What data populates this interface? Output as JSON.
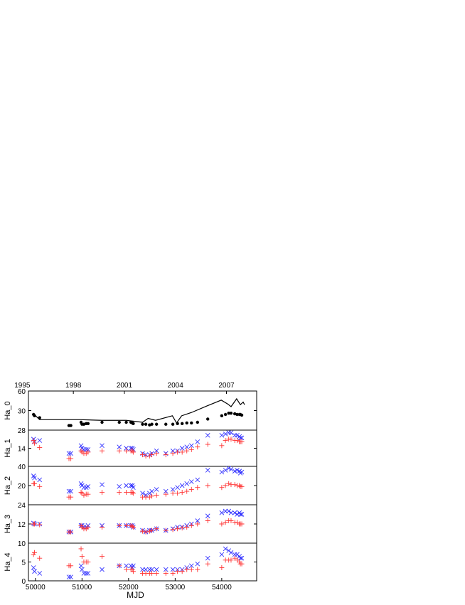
{
  "chart_data": [
    {
      "type": "scatter",
      "ylabel": "Ha_0",
      "ylim": [
        0,
        60
      ],
      "yticks": [
        30,
        60
      ],
      "xlim": [
        49850,
        54750
      ],
      "x2ticks": [
        {
          "value": 49718,
          "label": "1995"
        },
        {
          "value": 50814,
          "label": "1998"
        },
        {
          "value": 51910,
          "label": "2001"
        },
        {
          "value": 53005,
          "label": "2004"
        },
        {
          "value": 54101,
          "label": "2007"
        }
      ],
      "x": [
        49960,
        49980,
        50090,
        50720,
        50760,
        50980,
        51000,
        51040,
        51090,
        51130,
        51430,
        51800,
        51950,
        52050,
        52080,
        52100,
        52300,
        52370,
        52450,
        52500,
        52600,
        52800,
        52950,
        53050,
        53150,
        53250,
        53350,
        53480,
        53700,
        54000,
        54080,
        54150,
        54200,
        54280,
        54330,
        54380,
        54400,
        54430
      ],
      "series": [
        {
          "marker": "line",
          "color": "#000000",
          "x": [
            49960,
            50090,
            50720,
            50980,
            51430,
            51950,
            52300,
            52420,
            52580,
            52940,
            53030,
            53140,
            53350,
            53680,
            53990,
            54130,
            54200,
            54320,
            54400,
            54460,
            54490
          ],
          "values": [
            25,
            16,
            16,
            16,
            15,
            15,
            12,
            18,
            15,
            22,
            11,
            22,
            27,
            37,
            46,
            40,
            36,
            48,
            39,
            43,
            39
          ]
        },
        {
          "marker": "dot",
          "color": "#000000",
          "values": [
            24,
            22,
            19,
            7,
            7,
            12,
            9,
            9,
            10,
            10,
            12,
            12,
            12,
            12,
            11,
            10,
            9,
            9,
            8,
            9,
            9,
            9,
            9,
            10,
            10,
            11,
            11,
            12,
            17,
            22,
            24,
            26,
            26,
            25,
            24,
            24,
            24,
            23
          ]
        }
      ]
    },
    {
      "type": "scatter",
      "ylabel": "Ha_1",
      "ylim": [
        0,
        28
      ],
      "yticks": [
        14,
        28
      ],
      "xlim": [
        49850,
        54750
      ],
      "x": [
        49960,
        49980,
        50090,
        50720,
        50760,
        50980,
        51000,
        51040,
        51090,
        51130,
        51430,
        51800,
        51950,
        52050,
        52080,
        52100,
        52300,
        52370,
        52450,
        52500,
        52600,
        52800,
        52950,
        53050,
        53150,
        53250,
        53350,
        53480,
        53700,
        54000,
        54080,
        54150,
        54200,
        54280,
        54330,
        54380,
        54400,
        54430
      ],
      "series": [
        {
          "marker": "x",
          "color": "#3333ff",
          "values": [
            21,
            19,
            20,
            10,
            10,
            16,
            14,
            13,
            13,
            13,
            16,
            15,
            14,
            14,
            14,
            13,
            10,
            9,
            9,
            10,
            12,
            10,
            12,
            12,
            14,
            15,
            16,
            19,
            24,
            24,
            25,
            26,
            26,
            24,
            24,
            23,
            22,
            22
          ]
        },
        {
          "marker": "+",
          "color": "#ff3333",
          "values": [
            20,
            18,
            14.5,
            6,
            6,
            12,
            11,
            10,
            10,
            11,
            12,
            12,
            12,
            12,
            12,
            11,
            9,
            8,
            8,
            9,
            10,
            9,
            10,
            11,
            11,
            12,
            13,
            15,
            17,
            16,
            20,
            21,
            21,
            20,
            20,
            19,
            19,
            19
          ]
        }
      ]
    },
    {
      "type": "scatter",
      "ylabel": "Ha_2",
      "ylim": [
        0,
        40
      ],
      "yticks": [
        20,
        40
      ],
      "xlim": [
        49850,
        54750
      ],
      "x": [
        49960,
        49980,
        50090,
        50720,
        50760,
        50980,
        51000,
        51040,
        51090,
        51130,
        51430,
        51800,
        51950,
        52050,
        52080,
        52100,
        52300,
        52370,
        52450,
        52500,
        52600,
        52800,
        52950,
        53050,
        53150,
        53250,
        53350,
        53480,
        53700,
        54000,
        54080,
        54150,
        54200,
        54280,
        54330,
        54380,
        54400,
        54430
      ],
      "series": [
        {
          "marker": "x",
          "color": "#3333ff",
          "values": [
            30,
            28,
            26,
            14,
            14,
            22,
            20,
            18,
            18,
            19,
            21,
            19,
            20,
            20,
            20,
            18,
            12,
            10,
            12,
            14,
            16,
            14,
            16,
            18,
            20,
            22,
            24,
            26,
            36,
            34,
            36,
            38,
            37,
            35,
            36,
            35,
            33,
            34
          ]
        },
        {
          "marker": "+",
          "color": "#ff3333",
          "values": [
            22,
            22,
            19,
            8,
            8,
            13,
            12,
            10,
            11,
            11,
            13,
            13,
            13,
            13,
            13,
            12,
            8,
            8,
            8,
            9,
            10,
            11,
            12,
            12,
            13,
            14,
            16,
            18,
            20,
            18,
            20,
            22,
            21,
            21,
            20,
            20,
            19,
            19
          ]
        }
      ]
    },
    {
      "type": "scatter",
      "ylabel": "Ha_3",
      "ylim": [
        0,
        24
      ],
      "yticks": [
        12,
        24
      ],
      "xlim": [
        49850,
        54750
      ],
      "x": [
        49960,
        49980,
        50090,
        50720,
        50760,
        50980,
        51000,
        51040,
        51090,
        51130,
        51430,
        51800,
        51950,
        52050,
        52080,
        52100,
        52300,
        52370,
        52450,
        52500,
        52600,
        52800,
        52950,
        53050,
        53150,
        53250,
        53350,
        53480,
        53700,
        54000,
        54080,
        54150,
        54200,
        54280,
        54330,
        54380,
        54400,
        54430
      ],
      "series": [
        {
          "marker": "x",
          "color": "#3333ff",
          "values": [
            12.5,
            12,
            12,
            7,
            7,
            11,
            11,
            10,
            10,
            11,
            11,
            11,
            11,
            11,
            11,
            10,
            8,
            7,
            8,
            8,
            9,
            8,
            9,
            10,
            10,
            11,
            12,
            14,
            17,
            19,
            20,
            20,
            19,
            19,
            18,
            19,
            18,
            18
          ]
        },
        {
          "marker": "+",
          "color": "#ff3333",
          "values": [
            12,
            12,
            11.5,
            7,
            7,
            11,
            10,
            9,
            9,
            10,
            10,
            11,
            11,
            11,
            10.5,
            10,
            7.5,
            7,
            7.5,
            8,
            9,
            8,
            8.5,
            9,
            9.5,
            10,
            11,
            12,
            14,
            12,
            13,
            14,
            14,
            13,
            13,
            12,
            12,
            12
          ]
        }
      ]
    },
    {
      "type": "scatter",
      "ylabel": "Ha_4",
      "xlabel": "MJD",
      "ylim": [
        0,
        10
      ],
      "yticks": [
        0,
        5,
        10
      ],
      "xlim": [
        49850,
        54750
      ],
      "xticks": [
        50000,
        51000,
        52000,
        53000,
        54000
      ],
      "x": [
        49960,
        49980,
        50090,
        50720,
        50760,
        50980,
        51000,
        51040,
        51090,
        51130,
        51430,
        51800,
        51950,
        52050,
        52080,
        52100,
        52300,
        52370,
        52450,
        52500,
        52600,
        52800,
        52950,
        53050,
        53150,
        53250,
        53350,
        53480,
        53700,
        54000,
        54080,
        54150,
        54200,
        54280,
        54330,
        54380,
        54400,
        54430
      ],
      "series": [
        {
          "marker": "x",
          "color": "#3333ff",
          "values": [
            3.5,
            2.5,
            2,
            1,
            1,
            4,
            3,
            2,
            2,
            2,
            3,
            4,
            4,
            4,
            3.5,
            4,
            3,
            3,
            3,
            3,
            3,
            3,
            3,
            3,
            3,
            3.5,
            4,
            4.5,
            6,
            7,
            8.5,
            8,
            7.5,
            7,
            7,
            6.5,
            6,
            6
          ]
        },
        {
          "marker": "+",
          "color": "#ff3333",
          "values": [
            7,
            7.5,
            6,
            4,
            4,
            8.5,
            6.5,
            5,
            5,
            5,
            6.5,
            4,
            3,
            3,
            3,
            2.5,
            2,
            2,
            2,
            2,
            2,
            2,
            2,
            2.5,
            2.5,
            3,
            3,
            3,
            4.5,
            3.5,
            5.5,
            5.5,
            5.5,
            6,
            5.5,
            5,
            4.5,
            4.5
          ]
        }
      ]
    }
  ]
}
